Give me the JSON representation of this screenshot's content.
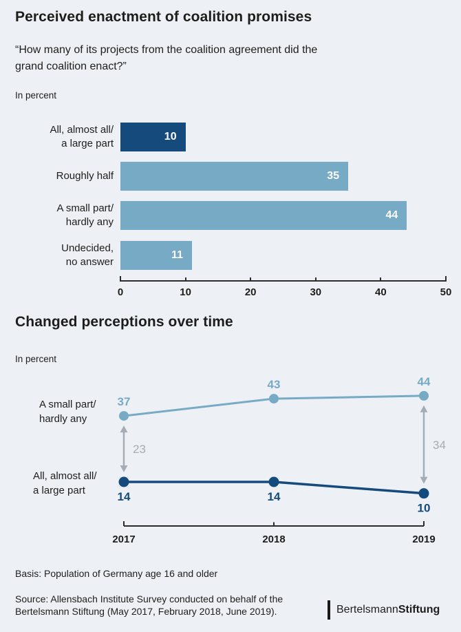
{
  "header": {
    "title": "Perceived enactment of coalition promises",
    "subtitle": "“How many of its projects from the coalition agreement did the\ngrand coalition enact?”",
    "unit_label": "In percent"
  },
  "bar_chart": {
    "rows": [
      {
        "label": "All, almost all/\na large part",
        "value": 10,
        "color": "#154a7d"
      },
      {
        "label": "Roughly half",
        "value": 35,
        "color": "#76aac5"
      },
      {
        "label": "A small part/\nhardly any",
        "value": 44,
        "color": "#76aac5"
      },
      {
        "label": "Undecided,\nno answer",
        "value": 11,
        "color": "#76aac5"
      }
    ],
    "axis_ticks": [
      0,
      10,
      20,
      30,
      40,
      50
    ]
  },
  "section2": {
    "title": "Changed perceptions over time",
    "unit_label": "In percent"
  },
  "line_chart": {
    "years": [
      "2017",
      "2018",
      "2019"
    ],
    "series": [
      {
        "name": "A small part/\nhardly any",
        "values": [
          37,
          43,
          44
        ],
        "color": "#76aac5"
      },
      {
        "name": "All, almost all/\na large part",
        "values": [
          14,
          14,
          10
        ],
        "color": "#154a7d"
      }
    ],
    "gaps": [
      {
        "year_index": 0,
        "value": 23
      },
      {
        "year_index": 2,
        "value": 34
      }
    ],
    "gap_color": "#a6acb3"
  },
  "footer": {
    "basis": "Basis: Population of Germany age 16 and older",
    "source": "Source: Allensbach Institute Survey conducted on behalf of the\nBertelsmann Stiftung (May 2017, February 2018, June 2019).",
    "logo_part1": "Bertelsmann",
    "logo_part2": "Stiftung"
  },
  "colors": {
    "background": "#edf1f6",
    "dark_blue": "#154a7d",
    "light_blue": "#76aac5",
    "gray": "#a6acb3"
  },
  "chart_data": [
    {
      "type": "bar",
      "orientation": "horizontal",
      "title": "Perceived enactment of coalition promises",
      "subtitle": "“How many of its projects from the coalition agreement did the grand coalition enact?”",
      "unit": "percent",
      "categories": [
        "All, almost all/ a large part",
        "Roughly half",
        "A small part/ hardly any",
        "Undecided, no answer"
      ],
      "values": [
        10,
        35,
        44,
        11
      ],
      "bar_colors": [
        "#154a7d",
        "#76aac5",
        "#76aac5",
        "#76aac5"
      ],
      "xlim": [
        0,
        50
      ],
      "x_ticks": [
        0,
        10,
        20,
        30,
        40,
        50
      ],
      "value_labels": "inside-end, white",
      "grid": false,
      "legend": false
    },
    {
      "type": "line",
      "title": "Changed perceptions over time",
      "unit": "percent",
      "x": [
        "2017",
        "2018",
        "2019"
      ],
      "series": [
        {
          "name": "A small part/ hardly any",
          "values": [
            37,
            43,
            44
          ],
          "color": "#76aac5"
        },
        {
          "name": "All, almost all/ a large part",
          "values": [
            14,
            14,
            10
          ],
          "color": "#154a7d"
        }
      ],
      "annotations": [
        {
          "type": "gap-arrow",
          "x": "2017",
          "between": [
            37,
            14
          ],
          "label": 23
        },
        {
          "type": "gap-arrow",
          "x": "2019",
          "between": [
            44,
            10
          ],
          "label": 34
        }
      ],
      "markers": "filled-circles",
      "grid": false,
      "legend": "labels at left of first points"
    }
  ]
}
